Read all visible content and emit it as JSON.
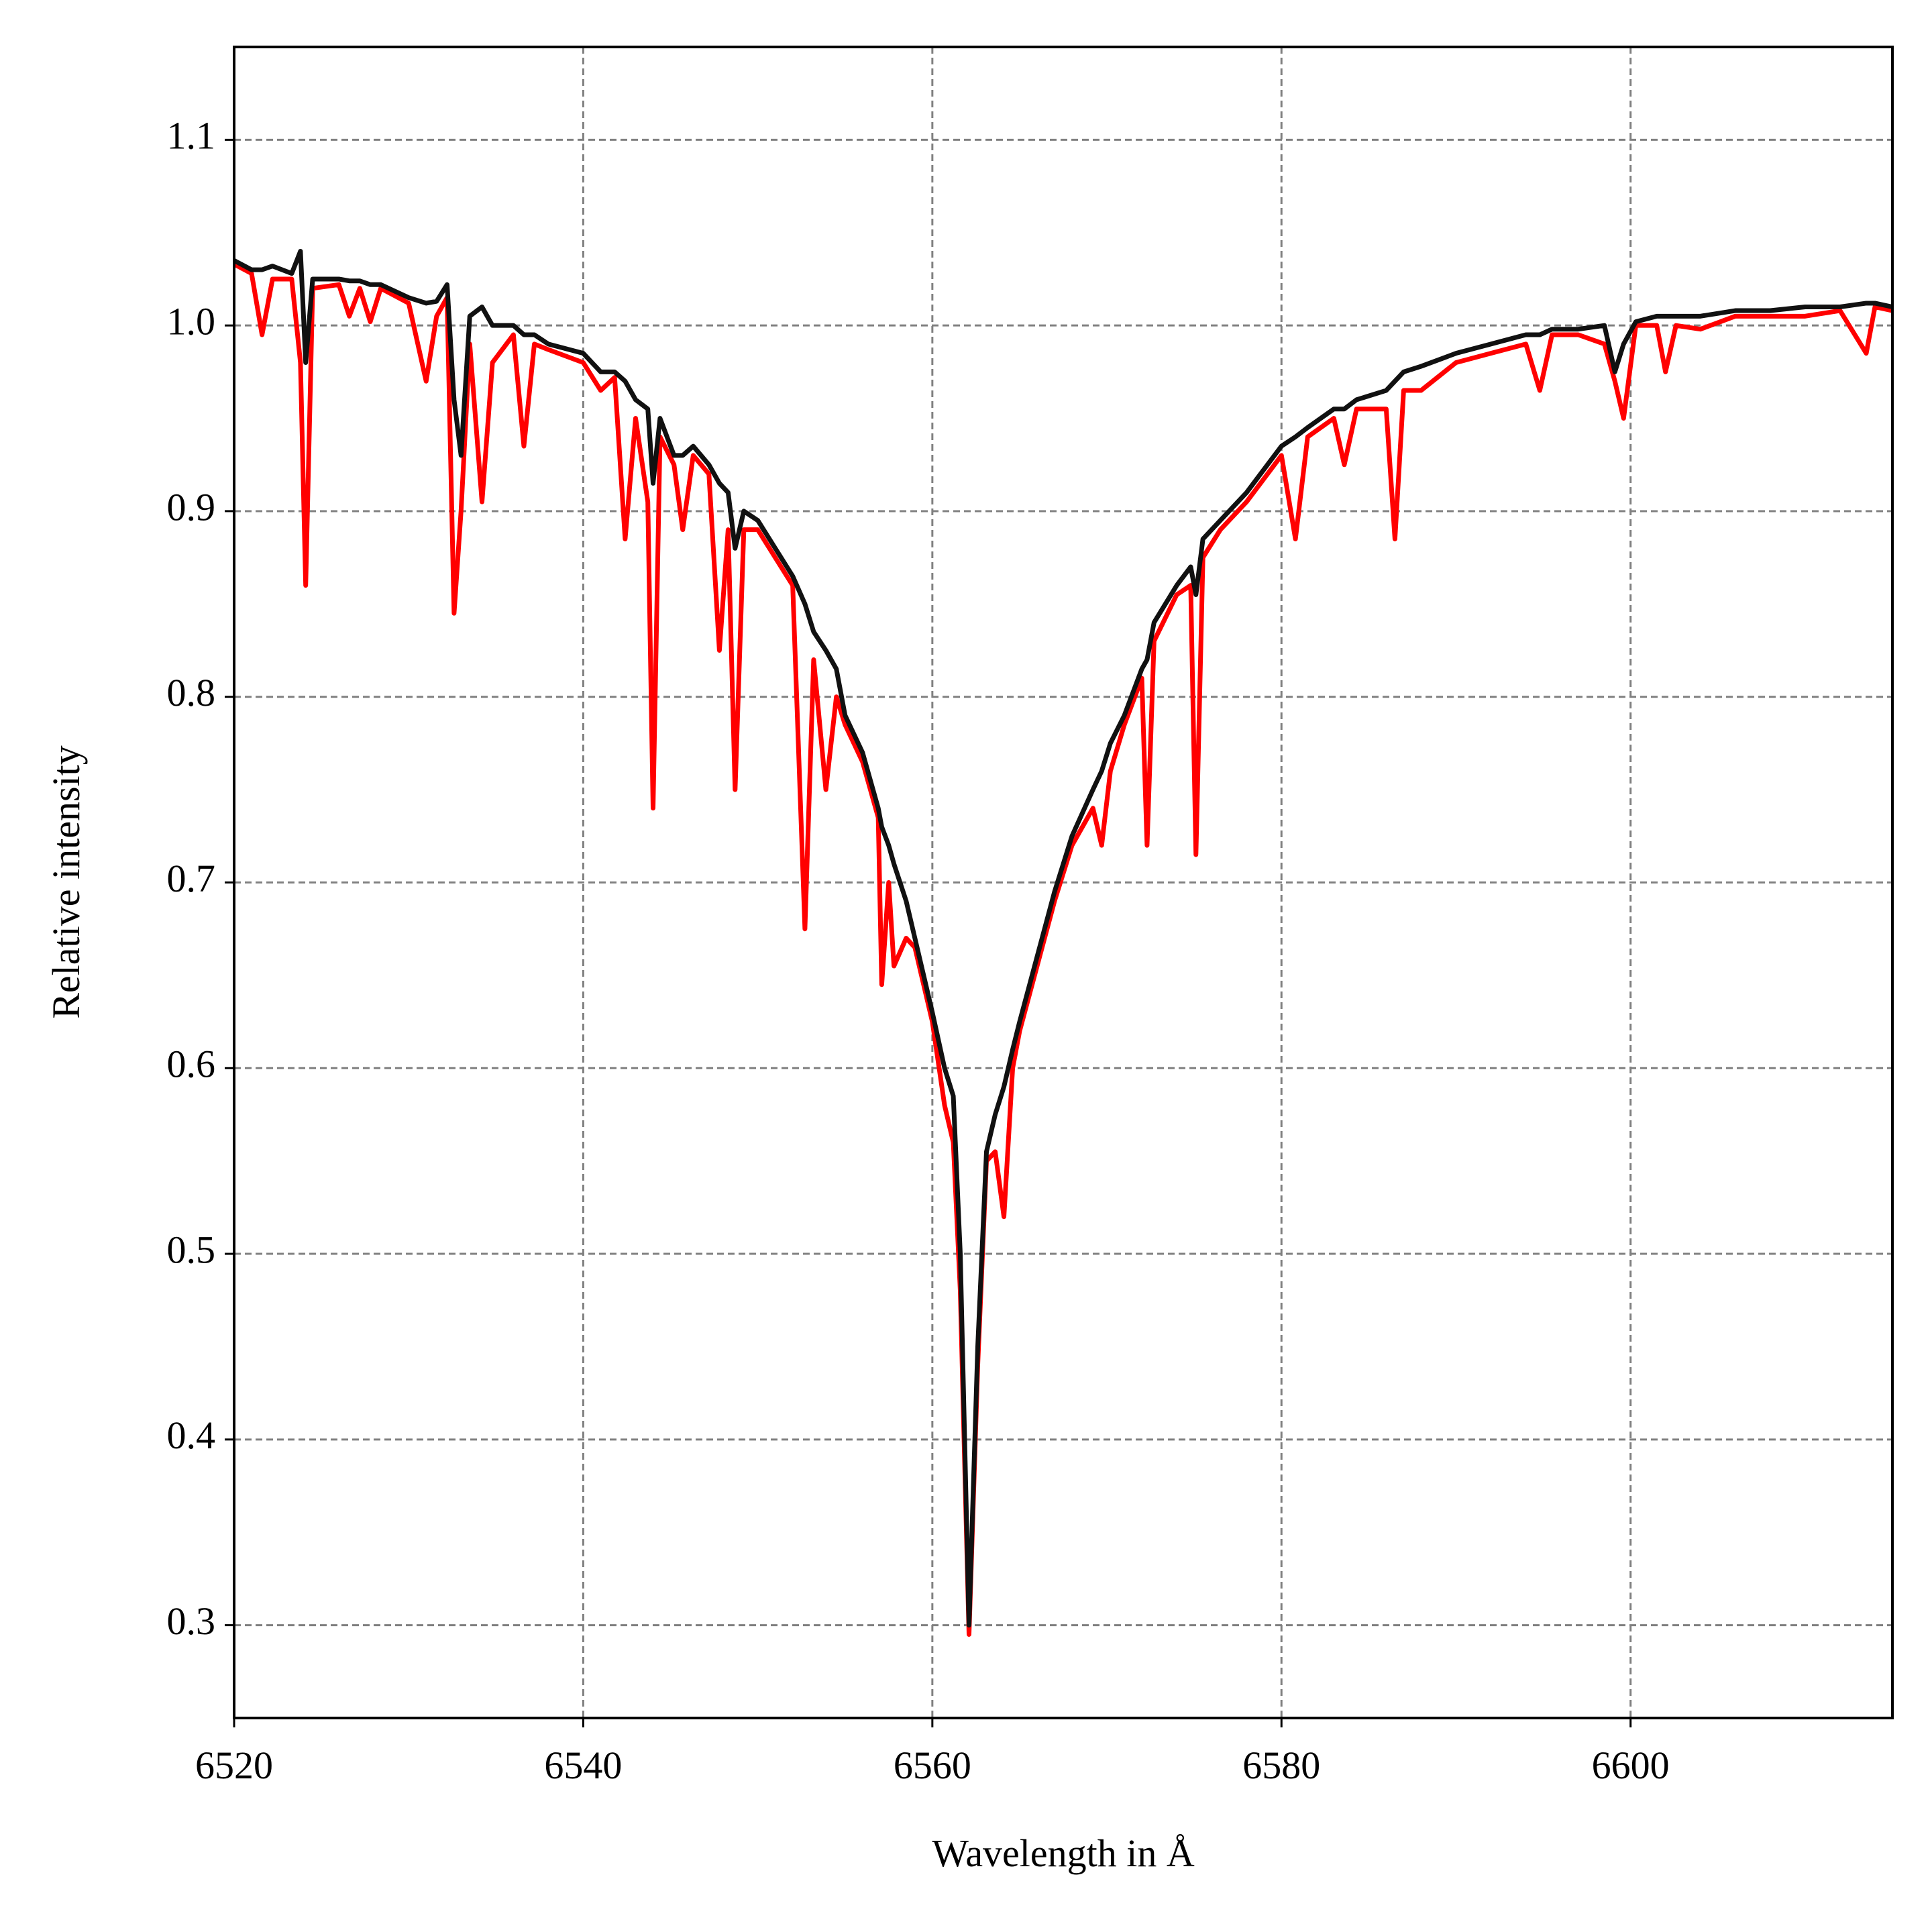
{
  "chart_data": {
    "type": "line",
    "x_label": "Wavelength in Å",
    "y_label": "Relative intensity",
    "x": [
      6520,
      6521,
      6521.6,
      6522.2,
      6523.3,
      6523.8,
      6524.1,
      6524.5,
      6526,
      6526.6,
      6527.2,
      6527.8,
      6528.4,
      6530,
      6531,
      6531.6,
      6532.2,
      6532.6,
      6533.0,
      6533.5,
      6534.2,
      6534.8,
      6536,
      6536.6,
      6537.2,
      6538,
      6540,
      6541,
      6541.8,
      6542.4,
      6543,
      6543.7,
      6544,
      6544.4,
      6545.2,
      6545.7,
      6546.3,
      6547.2,
      6547.8,
      6548.3,
      6548.7,
      6549.2,
      6550,
      6551,
      6552,
      6552.7,
      6553.2,
      6553.9,
      6554.5,
      6555,
      6556,
      6556.9,
      6557.1,
      6557.5,
      6557.8,
      6558.5,
      6559,
      6560,
      6560.7,
      6561.2,
      6561.6,
      6562.1,
      6562.6,
      6563.1,
      6563.6,
      6564.1,
      6564.6,
      6565,
      6566,
      6567,
      6568,
      6569.2,
      6569.7,
      6570.2,
      6571,
      6572,
      6572.3,
      6572.7,
      6574,
      6574.8,
      6575.1,
      6575.5,
      6576.5,
      6578,
      6580,
      6580.8,
      6581.5,
      6583,
      6583.6,
      6584.3,
      6586,
      6586.5,
      6587,
      6588,
      6590,
      6592,
      6594,
      6594.8,
      6595.5,
      6597,
      6598.5,
      6599.1,
      6599.6,
      6600.3,
      6601.5,
      6602,
      6602.6,
      6604,
      6606,
      6608,
      6610,
      6612,
      6613.5,
      6614,
      6615
    ],
    "series": [
      {
        "color": "#ff0000",
        "values": [
          1.033,
          1.028,
          0.995,
          1.025,
          1.025,
          0.98,
          0.86,
          1.02,
          1.022,
          1.005,
          1.02,
          1.002,
          1.02,
          1.012,
          0.97,
          1.005,
          1.015,
          0.845,
          0.9,
          0.99,
          0.905,
          0.98,
          0.995,
          0.935,
          0.99,
          0.987,
          0.98,
          0.965,
          0.972,
          0.885,
          0.95,
          0.905,
          0.74,
          0.94,
          0.925,
          0.89,
          0.93,
          0.92,
          0.825,
          0.89,
          0.75,
          0.89,
          0.89,
          0.875,
          0.86,
          0.675,
          0.82,
          0.75,
          0.8,
          0.785,
          0.765,
          0.735,
          0.645,
          0.7,
          0.655,
          0.67,
          0.665,
          0.625,
          0.58,
          0.56,
          0.48,
          0.295,
          0.44,
          0.55,
          0.555,
          0.52,
          0.6,
          0.62,
          0.655,
          0.69,
          0.72,
          0.74,
          0.72,
          0.76,
          0.785,
          0.81,
          0.72,
          0.83,
          0.855,
          0.86,
          0.715,
          0.875,
          0.89,
          0.905,
          0.93,
          0.885,
          0.94,
          0.95,
          0.925,
          0.955,
          0.955,
          0.885,
          0.965,
          0.965,
          0.98,
          0.985,
          0.99,
          0.965,
          0.995,
          0.995,
          0.99,
          0.97,
          0.95,
          1.0,
          1.0,
          0.975,
          1.0,
          0.998,
          1.005,
          1.005,
          1.005,
          1.008,
          0.985,
          1.01,
          1.008
        ]
      },
      {
        "color": "#111111",
        "values": [
          1.035,
          1.03,
          1.03,
          1.032,
          1.028,
          1.04,
          0.98,
          1.025,
          1.025,
          1.024,
          1.024,
          1.022,
          1.022,
          1.015,
          1.012,
          1.013,
          1.022,
          0.96,
          0.93,
          1.005,
          1.01,
          1.0,
          1.0,
          0.995,
          0.995,
          0.99,
          0.985,
          0.975,
          0.975,
          0.97,
          0.96,
          0.955,
          0.915,
          0.95,
          0.93,
          0.93,
          0.935,
          0.925,
          0.915,
          0.91,
          0.88,
          0.9,
          0.895,
          0.88,
          0.865,
          0.85,
          0.835,
          0.825,
          0.815,
          0.79,
          0.77,
          0.74,
          0.73,
          0.72,
          0.71,
          0.69,
          0.67,
          0.63,
          0.6,
          0.585,
          0.5,
          0.3,
          0.45,
          0.555,
          0.575,
          0.59,
          0.61,
          0.625,
          0.66,
          0.695,
          0.725,
          0.75,
          0.76,
          0.775,
          0.79,
          0.815,
          0.82,
          0.84,
          0.86,
          0.87,
          0.855,
          0.885,
          0.895,
          0.91,
          0.935,
          0.94,
          0.945,
          0.955,
          0.955,
          0.96,
          0.965,
          0.97,
          0.975,
          0.978,
          0.985,
          0.99,
          0.995,
          0.995,
          0.998,
          0.998,
          1.0,
          0.975,
          0.99,
          1.002,
          1.005,
          1.005,
          1.005,
          1.005,
          1.008,
          1.008,
          1.01,
          1.01,
          1.012,
          1.012,
          1.01
        ]
      }
    ],
    "xlim": [
      6520,
      6615
    ],
    "ylim": [
      0.25,
      1.15
    ],
    "xticks": [
      6520,
      6540,
      6560,
      6580,
      6600
    ],
    "yticks": [
      0.3,
      0.4,
      0.5,
      0.6,
      0.7,
      0.8,
      0.9,
      {
        "value": 1.0,
        "label": "1.0"
      },
      1.1
    ],
    "grid": true
  }
}
